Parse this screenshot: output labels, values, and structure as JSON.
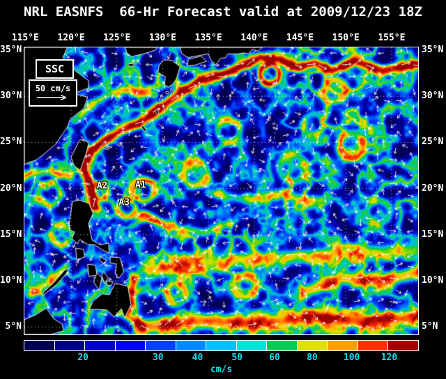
{
  "title": "NRL EASNFS  66-Hr Forecast valid at 2009/12/23 18Z",
  "axes": {
    "lon": [
      {
        "deg": 115,
        "label": "115°E"
      },
      {
        "deg": 120,
        "label": "120°E"
      },
      {
        "deg": 125,
        "label": "125°E"
      },
      {
        "deg": 130,
        "label": "130°E"
      },
      {
        "deg": 135,
        "label": "135°E"
      },
      {
        "deg": 140,
        "label": "140°E"
      },
      {
        "deg": 145,
        "label": "145°E"
      },
      {
        "deg": 150,
        "label": "150°E"
      },
      {
        "deg": 155,
        "label": "155°E"
      }
    ],
    "lat": [
      {
        "deg": 35,
        "label": "35°N"
      },
      {
        "deg": 30,
        "label": "30°N"
      },
      {
        "deg": 25,
        "label": "25°N"
      },
      {
        "deg": 20,
        "label": "20°N"
      },
      {
        "deg": 15,
        "label": "15°N"
      },
      {
        "deg": 10,
        "label": "10°N"
      },
      {
        "deg": 5,
        "label": "5°N"
      }
    ]
  },
  "legend": {
    "title": "SSC",
    "scale_label": "50 cm/s"
  },
  "annotations": [
    {
      "text": "A1",
      "lon": 127.6,
      "lat": 20.35
    },
    {
      "text": "A2",
      "lon": 123.4,
      "lat": 20.3
    },
    {
      "text": "A3",
      "lon": 125.8,
      "lat": 18.45
    }
  ],
  "colorbar": {
    "unit": "cm/s",
    "ticks": [
      {
        "label": "20",
        "pos_pct": 15
      },
      {
        "label": "30",
        "pos_pct": 34
      },
      {
        "label": "40",
        "pos_pct": 44
      },
      {
        "label": "50",
        "pos_pct": 54
      },
      {
        "label": "60",
        "pos_pct": 63.5
      },
      {
        "label": "80",
        "pos_pct": 73
      },
      {
        "label": "100",
        "pos_pct": 83
      },
      {
        "label": "120",
        "pos_pct": 92.5
      }
    ],
    "segment_colors": [
      "#000050",
      "#000084",
      "#0000c0",
      "#0000ff",
      "#0040ff",
      "#0088ff",
      "#00c0ff",
      "#00e4dc",
      "#00cc55",
      "#e0e000",
      "#ffa000",
      "#ff3000",
      "#a00000"
    ],
    "tick_color": "#00dff0"
  },
  "map_extent": {
    "lon_min": 114.9,
    "lon_max": 157.9,
    "lat_min": 4.2,
    "lat_max": 35.3
  },
  "colors": {
    "background": "#000000",
    "text": "#ffffff",
    "grid": "#ffffff",
    "coastline": "#e6e6e6",
    "arrow": "#ffffff",
    "border": "#ffffff"
  }
}
